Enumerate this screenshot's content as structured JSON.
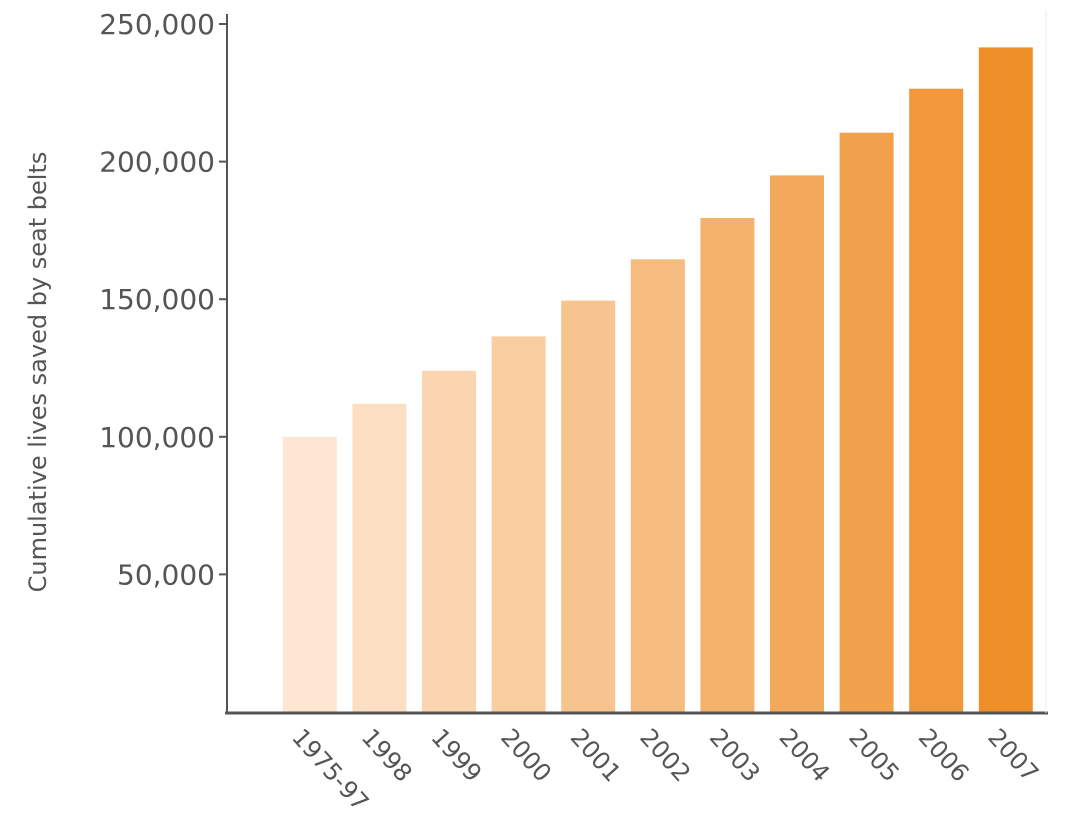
{
  "chart_data": {
    "type": "bar",
    "title": "",
    "xlabel": "",
    "ylabel": "Cumulative lives saved by seat belts",
    "categories": [
      "1975-97",
      "1998",
      "1999",
      "2000",
      "2001",
      "2002",
      "2003",
      "2004",
      "2005",
      "2006",
      "2007"
    ],
    "values": [
      100000,
      112000,
      124000,
      136500,
      149500,
      164500,
      179500,
      195000,
      210500,
      226500,
      241500
    ],
    "yticks": [
      "50,000",
      "100,000",
      "150,000",
      "200,000",
      "250,000"
    ],
    "ytick_values": [
      50000,
      100000,
      150000,
      200000,
      250000
    ],
    "ylim": [
      0,
      250000
    ],
    "grid": false,
    "legend": "none",
    "colors": {
      "bar_start": "#FDE7D2",
      "bar_end": "#EE8F2A",
      "axis": "#555555",
      "text": "#555555"
    }
  }
}
